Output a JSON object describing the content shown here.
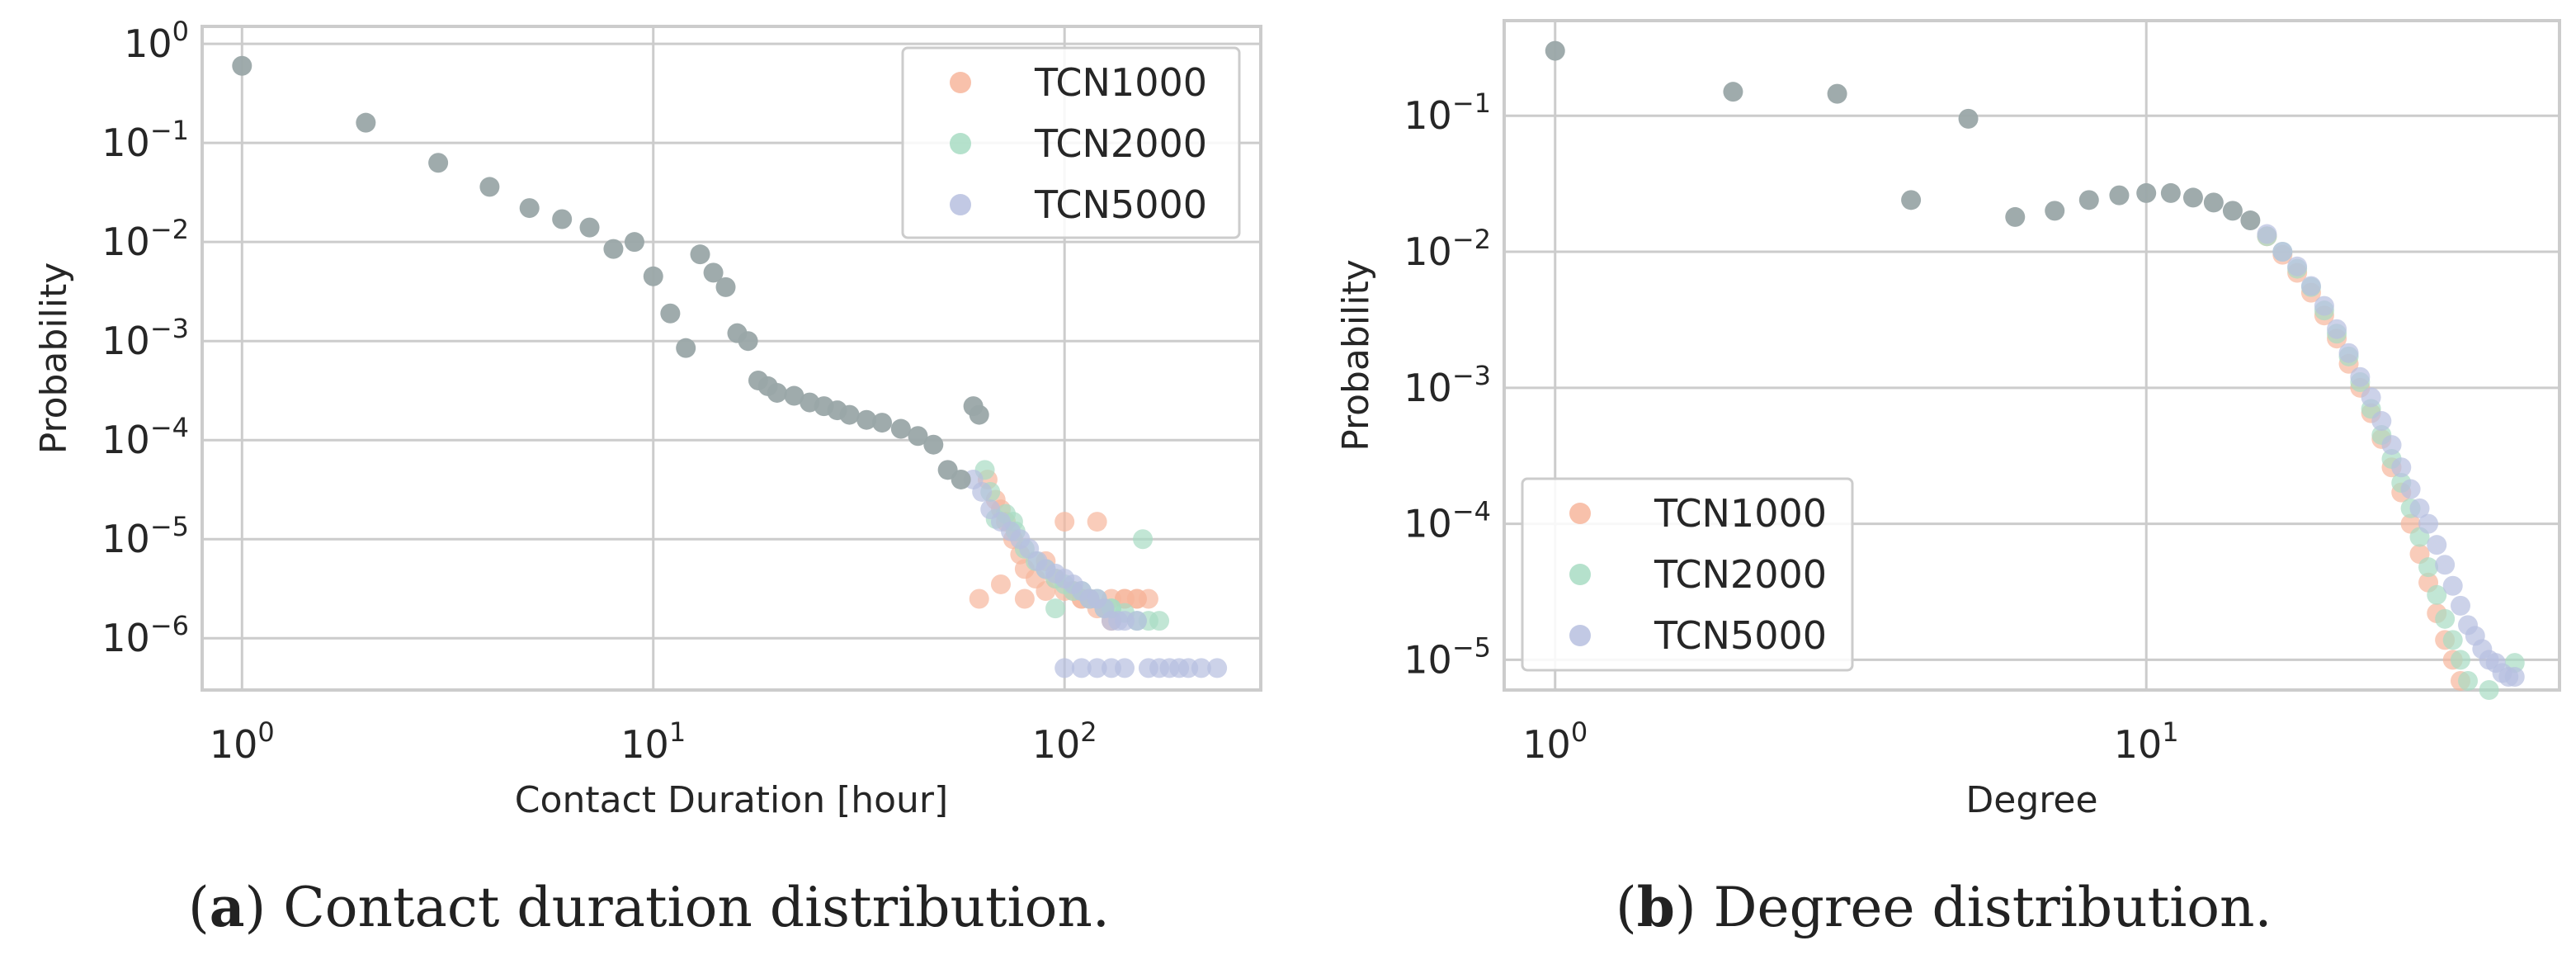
{
  "colors": {
    "TCN1000": "#f7b69c",
    "TCN2000": "#a8dcc3",
    "TCN5000": "#b7bfdf",
    "overlap": "#9aa7a8",
    "grid": "#cccccc",
    "frame": "#cccccc",
    "text": "#262626"
  },
  "captions": {
    "a": {
      "label": "a",
      "text": ") Contact duration distribution."
    },
    "b": {
      "label": "b",
      "text": ") Degree distribution."
    }
  },
  "chart_data": [
    {
      "type": "scatter",
      "panel": "a",
      "title": "",
      "xlabel": "Contact Duration [hour]",
      "ylabel": "Probability",
      "xscale": "log",
      "yscale": "log",
      "xlim": [
        0.8,
        300
      ],
      "ylim": [
        3e-07,
        1.5
      ],
      "xticks": [
        {
          "value": 1,
          "base": "10",
          "exp": "0"
        },
        {
          "value": 10,
          "base": "10",
          "exp": "1"
        },
        {
          "value": 100,
          "base": "10",
          "exp": "2"
        }
      ],
      "yticks": [
        {
          "value": 1,
          "base": "10",
          "exp": "0"
        },
        {
          "value": 0.1,
          "base": "10",
          "exp": "−1"
        },
        {
          "value": 0.01,
          "base": "10",
          "exp": "−2"
        },
        {
          "value": 0.001,
          "base": "10",
          "exp": "−3"
        },
        {
          "value": 0.0001,
          "base": "10",
          "exp": "−4"
        },
        {
          "value": 1e-05,
          "base": "10",
          "exp": "−5"
        },
        {
          "value": 1e-06,
          "base": "10",
          "exp": "−6"
        }
      ],
      "grid": true,
      "legend_position": "top-right",
      "shared_points": {
        "x": [
          1,
          2,
          3,
          4,
          5,
          6,
          7,
          8,
          9,
          10,
          11,
          12,
          13,
          14,
          15,
          16,
          17,
          18,
          19,
          20,
          22,
          24,
          26,
          28,
          30,
          33,
          36,
          40,
          44,
          48,
          52,
          56,
          60,
          62
        ],
        "y": [
          0.6,
          0.16,
          0.063,
          0.036,
          0.022,
          0.017,
          0.014,
          0.0085,
          0.01,
          0.0045,
          0.0019,
          0.00085,
          0.0075,
          0.0049,
          0.0035,
          0.0012,
          0.001,
          0.0004,
          0.00035,
          0.0003,
          0.00028,
          0.00024,
          0.00022,
          0.0002,
          0.00018,
          0.00016,
          0.00015,
          0.00013,
          0.00011,
          9e-05,
          5e-05,
          4e-05,
          0.00022,
          0.00018
        ]
      },
      "series": [
        {
          "name": "TCN1000",
          "x": [
            65,
            68,
            70,
            72,
            75,
            78,
            80,
            85,
            90,
            95,
            100,
            105,
            110,
            115,
            120,
            125,
            130,
            140,
            150,
            160,
            62,
            70,
            80,
            90,
            100,
            110,
            120,
            130,
            140,
            150
          ],
          "y": [
            4e-05,
            2.5e-05,
            2e-05,
            1.5e-05,
            1e-05,
            7e-06,
            5e-06,
            4e-06,
            6e-06,
            4e-06,
            3e-06,
            3e-06,
            2.5e-06,
            2.5e-06,
            2e-06,
            2e-06,
            1.5e-06,
            2.5e-06,
            2.5e-06,
            2.5e-06,
            2.5e-06,
            3.5e-06,
            2.5e-06,
            3e-06,
            1.5e-05,
            2.5e-06,
            1.5e-05,
            2.5e-06,
            2.5e-06,
            2.5e-06
          ]
        },
        {
          "name": "TCN2000",
          "x": [
            64,
            66,
            68,
            72,
            76,
            80,
            85,
            90,
            95,
            100,
            105,
            110,
            115,
            120,
            125,
            130,
            140,
            150,
            160,
            170,
            75,
            95,
            130,
            155
          ],
          "y": [
            5e-05,
            3e-05,
            1.6e-05,
            1.8e-05,
            1.2e-05,
            8e-06,
            6e-06,
            5e-06,
            4e-06,
            3.5e-06,
            3e-06,
            3e-06,
            2.5e-06,
            2.5e-06,
            2e-06,
            2e-06,
            1.8e-06,
            1.5e-06,
            1.5e-06,
            1.5e-06,
            1.5e-05,
            2e-06,
            2e-06,
            1e-05
          ]
        },
        {
          "name": "TCN5000",
          "x": [
            60,
            63,
            66,
            70,
            74,
            78,
            82,
            86,
            90,
            95,
            100,
            105,
            110,
            115,
            120,
            125,
            130,
            135,
            140,
            150,
            160,
            170,
            180,
            190,
            200,
            215,
            235,
            100,
            110,
            120,
            130,
            140
          ],
          "y": [
            4e-05,
            3e-05,
            2e-05,
            1.5e-05,
            1.2e-05,
            1e-05,
            8e-06,
            6e-06,
            5e-06,
            4.5e-06,
            4e-06,
            3.5e-06,
            3e-06,
            2.5e-06,
            2.5e-06,
            2e-06,
            1.5e-06,
            1.5e-06,
            1.5e-06,
            1.5e-06,
            5e-07,
            5e-07,
            5e-07,
            5e-07,
            5e-07,
            5e-07,
            5e-07,
            5e-07,
            5e-07,
            5e-07,
            5e-07,
            5e-07
          ]
        }
      ]
    },
    {
      "type": "scatter",
      "panel": "b",
      "title": "",
      "xlabel": "Degree",
      "ylabel": "Probability",
      "xscale": "log",
      "yscale": "log",
      "xlim": [
        0.82,
        50
      ],
      "ylim": [
        6e-06,
        0.5
      ],
      "xticks": [
        {
          "value": 1,
          "base": "10",
          "exp": "0"
        },
        {
          "value": 10,
          "base": "10",
          "exp": "1"
        }
      ],
      "yticks": [
        {
          "value": 0.1,
          "base": "10",
          "exp": "−1"
        },
        {
          "value": 0.01,
          "base": "10",
          "exp": "−2"
        },
        {
          "value": 0.001,
          "base": "10",
          "exp": "−3"
        },
        {
          "value": 0.0001,
          "base": "10",
          "exp": "−4"
        },
        {
          "value": 1e-05,
          "base": "10",
          "exp": "−5"
        }
      ],
      "grid": true,
      "legend_position": "bottom-left",
      "shared_points": {
        "x": [
          1,
          2,
          3,
          4,
          5,
          6,
          7,
          8,
          9,
          10,
          11,
          12,
          13,
          14,
          15
        ],
        "y": [
          0.3,
          0.15,
          0.145,
          0.024,
          0.095,
          0.018,
          0.02,
          0.024,
          0.026,
          0.027,
          0.027,
          0.025,
          0.023,
          0.02,
          0.017
        ]
      },
      "series": [
        {
          "name": "TCN1000",
          "x": [
            16,
            17,
            18,
            19,
            20,
            21,
            22,
            23,
            24,
            25,
            26,
            27,
            28,
            29,
            30,
            31,
            32,
            33,
            34,
            35
          ],
          "y": [
            0.013,
            0.0095,
            0.007,
            0.005,
            0.0034,
            0.0023,
            0.0015,
            0.001,
            0.00065,
            0.00042,
            0.00026,
            0.00017,
            0.0001,
            6e-05,
            3.7e-05,
            2.2e-05,
            1.4e-05,
            1e-05,
            7e-06,
            5e-06
          ]
        },
        {
          "name": "TCN2000",
          "x": [
            16,
            17,
            18,
            19,
            20,
            21,
            22,
            23,
            24,
            25,
            26,
            27,
            28,
            29,
            30,
            31,
            32,
            33,
            34,
            35,
            38,
            42
          ],
          "y": [
            0.013,
            0.01,
            0.0075,
            0.0055,
            0.0037,
            0.0025,
            0.0017,
            0.0011,
            0.0007,
            0.00045,
            0.0003,
            0.0002,
            0.00013,
            8e-05,
            4.8e-05,
            3e-05,
            2e-05,
            1.4e-05,
            1e-05,
            7e-06,
            6e-06,
            9.5e-06
          ]
        },
        {
          "name": "TCN5000",
          "x": [
            16,
            17,
            18,
            19,
            20,
            21,
            22,
            23,
            24,
            25,
            26,
            27,
            28,
            29,
            30,
            31,
            32,
            33,
            34,
            35,
            36,
            37,
            38,
            39,
            40,
            41,
            42
          ],
          "y": [
            0.0135,
            0.01,
            0.0078,
            0.0056,
            0.004,
            0.0027,
            0.0018,
            0.0012,
            0.00085,
            0.00057,
            0.00038,
            0.00026,
            0.00018,
            0.00013,
            0.0001,
            7e-05,
            5e-05,
            3.5e-05,
            2.5e-05,
            1.8e-05,
            1.5e-05,
            1.2e-05,
            1e-05,
            9.5e-06,
            8e-06,
            7.5e-06,
            7.5e-06
          ]
        }
      ]
    }
  ]
}
